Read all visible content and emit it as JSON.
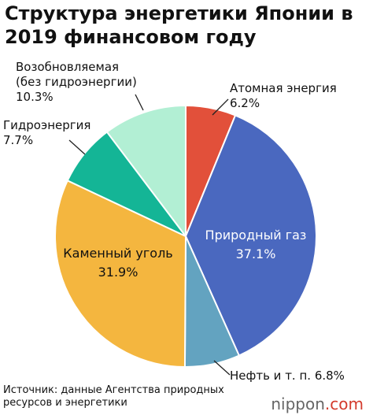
{
  "title": "Структура энергетики Японии в 2019 финансовом году",
  "source": "Источник: данные Агентства природных ресурсов и энергетики",
  "brand": {
    "text": "nippon",
    "suffix": ".com"
  },
  "chart_data": {
    "type": "pie",
    "title": "Структура энергетики Японии в 2019 финансовом году",
    "start_angle_deg": 0,
    "direction": "clockwise",
    "slices": [
      {
        "label": "Атомная энергия",
        "value_label": "6.2%",
        "value": 6.2,
        "color": "#e2503a"
      },
      {
        "label": "Природный газ",
        "value_label": "37.1%",
        "value": 37.1,
        "color": "#4a68bf"
      },
      {
        "label": "Нефть и т. п.",
        "value_label": "6.8%",
        "value": 6.8,
        "color": "#63a3c0"
      },
      {
        "label": "Каменный уголь",
        "value_label": "31.9%",
        "value": 31.9,
        "color": "#f4b63f"
      },
      {
        "label": "Гидроэнергия",
        "value_label": "7.7%",
        "value": 7.7,
        "color": "#14b596"
      },
      {
        "label": "Возобновляемая (без гидроэнергии)",
        "value_label": "10.3%",
        "value": 10.3,
        "color": "#b2efd4"
      }
    ]
  }
}
